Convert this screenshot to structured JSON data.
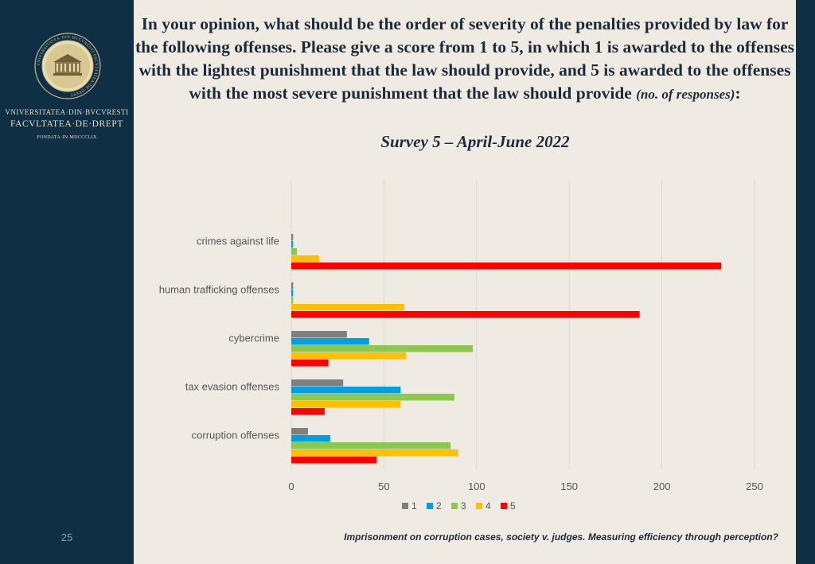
{
  "sidebar": {
    "university": "VNIVERSITATEA·DIN·BVCVRESTI",
    "faculty": "FACVLTATEA·DE·DREPT",
    "founded": "FONDATA·IN·MDCCCLIX",
    "seal_text": "VNIVERSITATEA·DIN·BVCVRESTI·FACVLTATEA·DE·DREPT",
    "page_number": "25"
  },
  "header": {
    "title_main": "In your opinion, what should be the order of severity of the penalties provided by law for the following offenses. Please give a score from 1 to 5, in which 1 is awarded to the offenses with the lightest punishment that the law should provide, and 5 is awarded to the offenses with the most severe punishment that the law should provide ",
    "title_paren": "(no. of responses)",
    "title_colon": ":",
    "subtitle": "Survey 5 – April-June 2022"
  },
  "footer": {
    "text": "Imprisonment on corruption cases, society v. judges. Measuring efficiency through perception?"
  },
  "colors": {
    "series_1": "#7f7f7f",
    "series_2": "#00a0e0",
    "series_3": "#8cc84b",
    "series_4": "#ffc000",
    "series_5": "#ff0000"
  },
  "chart_data": {
    "type": "bar",
    "orientation": "horizontal",
    "categories": [
      "crimes against life",
      "human trafficking offenses",
      "cybercrime",
      "tax evasion offenses",
      "corruption offenses"
    ],
    "series": [
      {
        "name": "1",
        "values": [
          1,
          1,
          30,
          28,
          9
        ]
      },
      {
        "name": "2",
        "values": [
          1,
          1,
          42,
          59,
          21
        ]
      },
      {
        "name": "3",
        "values": [
          3,
          1,
          98,
          88,
          86
        ]
      },
      {
        "name": "4",
        "values": [
          15,
          61,
          62,
          59,
          90
        ]
      },
      {
        "name": "5",
        "values": [
          232,
          188,
          20,
          18,
          46
        ]
      }
    ],
    "xlim": [
      0,
      250
    ],
    "xticks": [
      0,
      50,
      100,
      150,
      200,
      250
    ],
    "grid": true,
    "legend_position": "bottom"
  }
}
